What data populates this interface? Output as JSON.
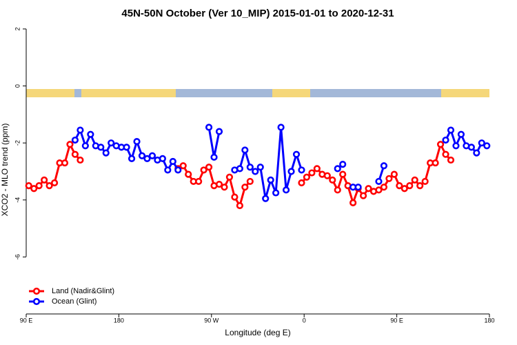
{
  "chart_data": {
    "type": "line",
    "title": "45N-50N October (Ver 10_MIP)   2015-01-01 to 2020-12-31",
    "xlabel": "Longitude (deg E)",
    "ylabel": "XCO2 - MLO trend (ppm)",
    "xlim": [
      90,
      540
    ],
    "ylim": [
      -8.0,
      2.12
    ],
    "xticks": [
      {
        "value": 90,
        "label": "90 E"
      },
      180,
      {
        "value": 270,
        "label": "90 W"
      },
      {
        "value": 360,
        "label": "0"
      },
      {
        "value": 450,
        "label": "90 E"
      },
      {
        "value": 540,
        "label": "180"
      }
    ],
    "yticks": [
      2,
      0,
      -2,
      -4,
      -6
    ],
    "legend": "bottom-left",
    "x": [
      92.5,
      97.5,
      102.5,
      107.5,
      112.5,
      117.5,
      122.5,
      127.5,
      132.5,
      137.5,
      142.5,
      147.5,
      152.5,
      157.5,
      162.5,
      167.5,
      172.5,
      177.5,
      182.5,
      187.5,
      192.5,
      197.5,
      202.5,
      207.5,
      212.5,
      217.5,
      222.5,
      227.5,
      232.5,
      237.5,
      242.5,
      247.5,
      252.5,
      257.5,
      262.5,
      267.5,
      272.5,
      277.5,
      282.5,
      287.5,
      292.5,
      297.5,
      302.5,
      307.5,
      312.5,
      317.5,
      322.5,
      327.5,
      332.5,
      337.5,
      342.5,
      347.5,
      352.5,
      357.5,
      362.5,
      367.5,
      372.5,
      377.5,
      382.5,
      387.5,
      392.5,
      397.5,
      402.5,
      407.5,
      412.5,
      417.5,
      422.5,
      427.5,
      432.5,
      437.5,
      442.5,
      447.5,
      452.5,
      457.5,
      462.5,
      467.5,
      472.5,
      477.5,
      482.5,
      487.5,
      492.5,
      497.5,
      502.5,
      507.5,
      512.5,
      517.5,
      522.5,
      527.5,
      532.5,
      537.5
    ],
    "series": [
      {
        "name": "Land (Nadir&Glint)",
        "color": "#ff0000",
        "values": [
          -3.5,
          -3.6,
          -3.5,
          -3.3,
          -3.5,
          -3.4,
          -2.7,
          -2.7,
          -2.05,
          -2.4,
          -2.6,
          null,
          null,
          null,
          null,
          null,
          null,
          null,
          null,
          null,
          null,
          null,
          null,
          null,
          null,
          null,
          null,
          null,
          null,
          -2.9,
          -2.8,
          -3.1,
          -3.35,
          -3.35,
          -2.95,
          -2.85,
          -3.5,
          -3.45,
          -3.55,
          -3.2,
          -3.9,
          -4.2,
          -3.55,
          -3.35,
          null,
          null,
          null,
          null,
          null,
          null,
          null,
          null,
          null,
          -3.4,
          -3.2,
          -3.05,
          -2.9,
          -3.1,
          -3.15,
          -3.3,
          -3.65,
          -3.1,
          -3.5,
          -4.1,
          -3.6,
          -3.85,
          -3.6,
          -3.7,
          -3.65,
          -3.55,
          -3.25,
          -3.1,
          -3.5,
          -3.6,
          -3.5,
          -3.3,
          -3.5,
          -3.35,
          -2.7,
          -2.7,
          -2.05,
          -2.4,
          -2.6,
          null,
          null,
          null,
          null,
          null,
          null,
          null
        ]
      },
      {
        "name": "Ocean (Glint)",
        "color": "#0000ff",
        "values": [
          null,
          null,
          null,
          null,
          null,
          null,
          null,
          null,
          null,
          -1.9,
          -1.55,
          -2.1,
          -1.7,
          -2.1,
          -2.15,
          -2.35,
          -2.0,
          -2.1,
          -2.15,
          -2.15,
          -2.55,
          -1.95,
          -2.45,
          -2.55,
          -2.45,
          -2.6,
          -2.55,
          -2.95,
          -2.65,
          -2.95,
          null,
          null,
          null,
          null,
          null,
          -1.45,
          -2.5,
          -1.6,
          null,
          null,
          -2.95,
          -2.9,
          -2.25,
          -2.85,
          -3.0,
          -2.85,
          -3.95,
          -3.3,
          -3.75,
          -1.45,
          -3.65,
          -3.0,
          -2.4,
          -2.95,
          null,
          null,
          null,
          null,
          null,
          null,
          -2.9,
          -2.75,
          null,
          -3.55,
          -3.55,
          null,
          null,
          null,
          -3.35,
          -2.8,
          null,
          null,
          null,
          null,
          null,
          null,
          null,
          null,
          null,
          null,
          null,
          -1.9,
          -1.55,
          -2.1,
          -1.7,
          -2.1,
          -2.15,
          -2.35,
          -2.0,
          -2.1
        ]
      }
    ]
  }
}
